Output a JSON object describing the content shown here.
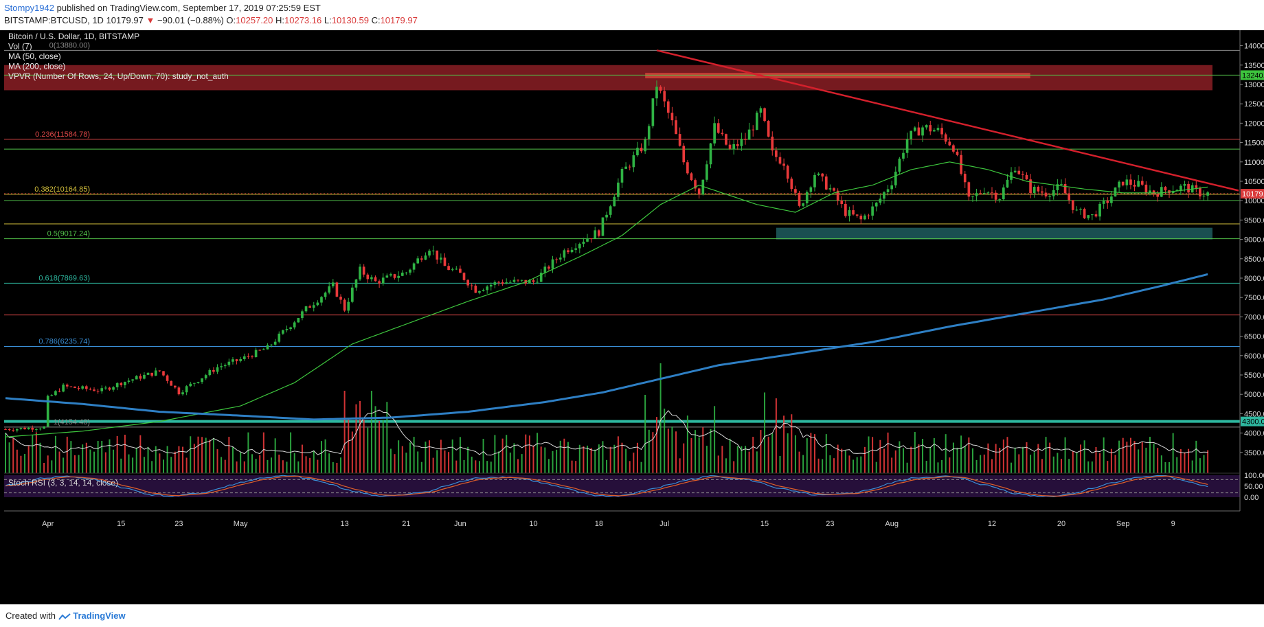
{
  "header": {
    "author": "Stompy1942",
    "published_text": "published on TradingView.com, September 17, 2019 07:25:59 EST",
    "symbol": "BITSTAMP:BTCUSD, 1D",
    "last": "10179.97",
    "change_arrow": "▼",
    "change": "−90.01 (−0.88%)",
    "o_label": "O:",
    "o_value": "10257.20",
    "h_label": "H:",
    "h_value": "10273.16",
    "l_label": "L:",
    "l_value": "10130.59",
    "c_label": "C:",
    "c_value": "10179.97"
  },
  "footer": {
    "created_text": "Created with",
    "brand": "TradingView"
  },
  "legend": [
    "Bitcoin / U.S. Dollar, 1D, BITSTAMP",
    "Vol (7)",
    "MA (50, close)",
    "MA (200, close)",
    "VPVR (Number Of Rows, 24, Up/Down, 70): study_not_auth"
  ],
  "colors": {
    "background": "#000000",
    "up": "#2fb344",
    "down": "#e8393a",
    "ma50": "#3dc43d",
    "ma200": "#2e7fc4",
    "trendline": "#d4202c",
    "current_price": "#d93a3a",
    "fib_gray": "#8a8a8a",
    "fib_red": "#e04848",
    "fib_yellow": "#d6c23c",
    "fib_green": "#52c24a",
    "fib_teal": "#2eb8a0",
    "fib_blue": "#3a8fd6",
    "resistance_zone": "#8b1f24",
    "support_zone": "#1f5d5f",
    "stoch_bg": "#2a1140",
    "stoch_k": "#3a8fd6",
    "stoch_d": "#e0602a"
  },
  "chart_data": {
    "type": "candlestick",
    "title": "Bitcoin / U.S. Dollar, 1D, BITSTAMP",
    "y_axis_labels": [
      "14000.00",
      "13500.00",
      "13000.00",
      "12500.00",
      "12000.00",
      "11500.00",
      "11000.00",
      "10500.00",
      "10000.00",
      "9500.00",
      "9000.00",
      "8500.00",
      "8000.00",
      "7500.00",
      "7000.00",
      "6500.00",
      "6000.00",
      "5500.00",
      "5000.00",
      "4500.00",
      "4000.00",
      "3500.00"
    ],
    "ylim": [
      3000,
      14400
    ],
    "x_axis_labels": [
      "Apr",
      "15",
      "23",
      "May",
      "13",
      "21",
      "Jun",
      "10",
      "18",
      "Jul",
      "15",
      "23",
      "Aug",
      "12",
      "20",
      "Sep",
      "9"
    ],
    "x_tick_candle_index": [
      11,
      30,
      45,
      61,
      88,
      104,
      118,
      137,
      154,
      171,
      197,
      214,
      230,
      256,
      274,
      290,
      303
    ],
    "price_tags": {
      "last": "10179.97",
      "level_13240": "13240.00",
      "level_4300": "4300.00"
    },
    "fib_levels": [
      {
        "label": "0(13880.00)",
        "value": 13880,
        "color": "gray"
      },
      {
        "label": "0.236(11584.78)",
        "value": 11584.78,
        "color": "red"
      },
      {
        "label": "0.382(10164.85)",
        "value": 10164.85,
        "color": "yellow"
      },
      {
        "label": "0.5(9017.24)",
        "value": 9017.24,
        "color": "green"
      },
      {
        "label": "0.618(7869.63)",
        "value": 7869.63,
        "color": "teal"
      },
      {
        "label": "0.786(6235.74)",
        "value": 6235.74,
        "color": "blue"
      },
      {
        "label": "1(4154.48)",
        "value": 4154.48,
        "color": "gray"
      }
    ],
    "horizontal_lines": [
      {
        "value": 13240,
        "color": "green"
      },
      {
        "value": 11330,
        "color": "green"
      },
      {
        "value": 10000,
        "color": "green"
      },
      {
        "value": 9400,
        "color": "yellow"
      },
      {
        "value": 7050,
        "color": "red"
      },
      {
        "value": 4300,
        "color": "teal"
      }
    ],
    "zones": [
      {
        "name": "resistance",
        "from": 12850,
        "to": 13500
      },
      {
        "name": "support",
        "from": 9000,
        "to": 9300,
        "start_index": 200
      }
    ],
    "trendline": {
      "from": {
        "index": 169,
        "value": 13880
      },
      "to": {
        "index": 320,
        "value": 10260
      }
    },
    "ohlc_keypoints": [
      [
        0,
        4100
      ],
      [
        10,
        4150
      ],
      [
        11,
        4900
      ],
      [
        15,
        5200
      ],
      [
        25,
        5100
      ],
      [
        30,
        5300
      ],
      [
        40,
        5600
      ],
      [
        45,
        5050
      ],
      [
        55,
        5700
      ],
      [
        61,
        5900
      ],
      [
        68,
        6200
      ],
      [
        78,
        7200
      ],
      [
        85,
        7800
      ],
      [
        88,
        7200
      ],
      [
        92,
        8200
      ],
      [
        96,
        7900
      ],
      [
        104,
        8150
      ],
      [
        110,
        8800
      ],
      [
        114,
        8300
      ],
      [
        118,
        8100
      ],
      [
        122,
        7700
      ],
      [
        128,
        7900
      ],
      [
        137,
        7900
      ],
      [
        145,
        8700
      ],
      [
        150,
        9000
      ],
      [
        154,
        9200
      ],
      [
        160,
        10700
      ],
      [
        166,
        11500
      ],
      [
        169,
        13000
      ],
      [
        173,
        12000
      ],
      [
        176,
        11000
      ],
      [
        180,
        10200
      ],
      [
        184,
        11900
      ],
      [
        188,
        11300
      ],
      [
        192,
        11600
      ],
      [
        196,
        12300
      ],
      [
        199,
        11200
      ],
      [
        202,
        11000
      ],
      [
        206,
        9800
      ],
      [
        210,
        10700
      ],
      [
        214,
        10300
      ],
      [
        218,
        9700
      ],
      [
        222,
        9500
      ],
      [
        226,
        9900
      ],
      [
        230,
        10500
      ],
      [
        234,
        11600
      ],
      [
        238,
        11900
      ],
      [
        242,
        11800
      ],
      [
        246,
        11400
      ],
      [
        250,
        10000
      ],
      [
        254,
        10300
      ],
      [
        258,
        10100
      ],
      [
        262,
        10900
      ],
      [
        266,
        10300
      ],
      [
        270,
        10200
      ],
      [
        274,
        10350
      ],
      [
        278,
        9700
      ],
      [
        282,
        9600
      ],
      [
        286,
        10000
      ],
      [
        290,
        10500
      ],
      [
        294,
        10400
      ],
      [
        298,
        10200
      ],
      [
        302,
        10300
      ],
      [
        306,
        10350
      ],
      [
        310,
        10200
      ],
      [
        312,
        10180
      ]
    ],
    "ma50_keypoints": [
      [
        0,
        3900
      ],
      [
        20,
        4050
      ],
      [
        40,
        4300
      ],
      [
        61,
        4700
      ],
      [
        75,
        5300
      ],
      [
        90,
        6300
      ],
      [
        105,
        6850
      ],
      [
        120,
        7400
      ],
      [
        135,
        7900
      ],
      [
        150,
        8600
      ],
      [
        160,
        9100
      ],
      [
        170,
        9900
      ],
      [
        180,
        10400
      ],
      [
        195,
        9900
      ],
      [
        205,
        9700
      ],
      [
        215,
        10200
      ],
      [
        225,
        10400
      ],
      [
        235,
        10800
      ],
      [
        245,
        11000
      ],
      [
        255,
        10800
      ],
      [
        265,
        10500
      ],
      [
        280,
        10300
      ],
      [
        290,
        10200
      ],
      [
        300,
        10200
      ],
      [
        312,
        10350
      ]
    ],
    "ma200_keypoints": [
      [
        0,
        4900
      ],
      [
        20,
        4750
      ],
      [
        40,
        4550
      ],
      [
        61,
        4450
      ],
      [
        80,
        4350
      ],
      [
        100,
        4400
      ],
      [
        120,
        4550
      ],
      [
        140,
        4800
      ],
      [
        155,
        5050
      ],
      [
        170,
        5400
      ],
      [
        185,
        5750
      ],
      [
        205,
        6050
      ],
      [
        225,
        6350
      ],
      [
        245,
        6750
      ],
      [
        265,
        7100
      ],
      [
        285,
        7450
      ],
      [
        300,
        7800
      ],
      [
        312,
        8100
      ]
    ],
    "volume_pane": {
      "series": "Vol (7)"
    },
    "stoch_rsi": {
      "label": "Stoch RSI (3, 3, 14, 14, close)",
      "y_axis_labels": [
        "100.00",
        "50.00",
        "0.00"
      ],
      "ylim": [
        0,
        100
      ],
      "bands": [
        80,
        20
      ]
    }
  }
}
